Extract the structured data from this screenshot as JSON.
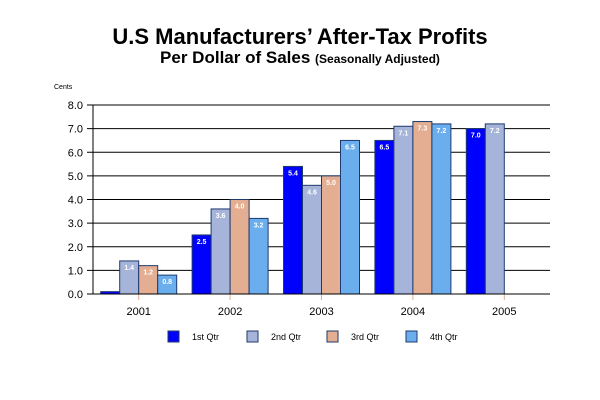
{
  "chart_data": {
    "type": "bar",
    "title": "U.S Manufacturers’ After-Tax Profits",
    "subtitle": "Per Dollar of Sales",
    "subtitle_note": "(Seasonally Adjusted)",
    "xlabel": "",
    "ylabel": "Cents",
    "ylim": [
      0,
      8
    ],
    "yticks": [
      "0.0",
      "1.0",
      "2.0",
      "3.0",
      "4.0",
      "5.0",
      "6.0",
      "7.0",
      "8.0"
    ],
    "grid": true,
    "legend_position": "bottom",
    "categories": [
      "2001",
      "2002",
      "2003",
      "2004",
      "2005"
    ],
    "series": [
      {
        "name": "1st Qtr",
        "color": "#0000FF",
        "values": [
          0.1,
          2.5,
          5.4,
          6.5,
          7.0
        ],
        "labels": [
          "",
          "2.5",
          "5.4",
          "6.5",
          "7.0"
        ]
      },
      {
        "name": "2nd Qtr",
        "color": "#A6B4DA",
        "values": [
          1.4,
          3.6,
          4.6,
          7.1,
          7.2
        ],
        "labels": [
          "1.4",
          "3.6",
          "4.6",
          "7.1",
          "7.2"
        ]
      },
      {
        "name": "3rd Qtr",
        "color": "#E3AE91",
        "values": [
          1.2,
          4.0,
          5.0,
          7.3,
          null
        ],
        "labels": [
          "1.2",
          "4.0",
          "5.0",
          "7.3",
          ""
        ]
      },
      {
        "name": "4th Qtr",
        "color": "#6BAEEE",
        "values": [
          0.8,
          3.2,
          6.5,
          7.2,
          null
        ],
        "labels": [
          "0.8",
          "3.2",
          "6.5",
          "7.2",
          ""
        ]
      }
    ]
  }
}
